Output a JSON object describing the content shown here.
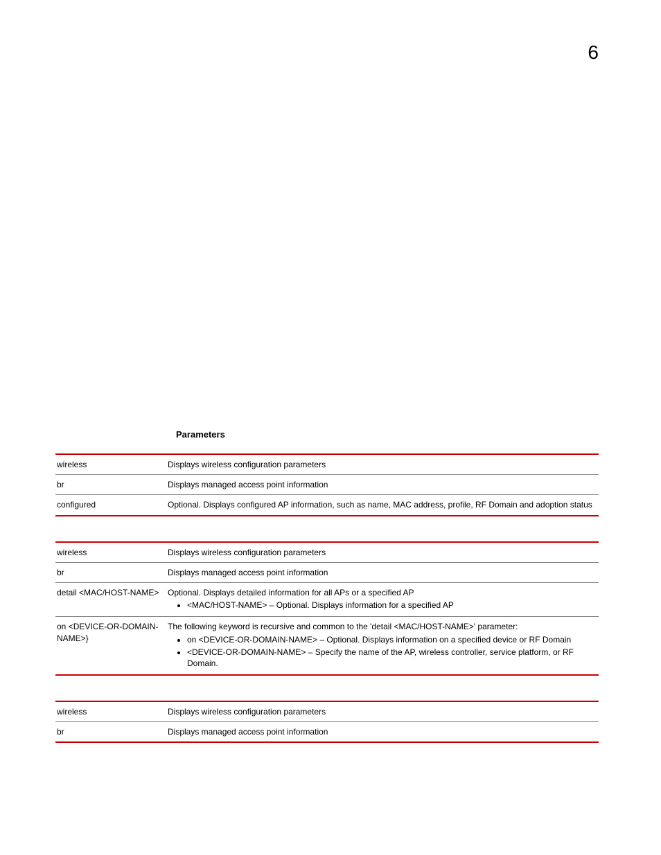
{
  "page": {
    "number": "6"
  },
  "section": {
    "heading": "Parameters"
  },
  "colors": {
    "rule": "#cc0000",
    "text": "#000000",
    "row_border": "#888888"
  },
  "tables": [
    {
      "rows": [
        {
          "param": "wireless",
          "desc": "Displays wireless configuration parameters"
        },
        {
          "param": "br",
          "desc": "Displays managed access point information"
        },
        {
          "param": "configured",
          "desc": "Optional. Displays configured AP information, such as name, MAC address, profile, RF Domain and adoption status"
        }
      ]
    },
    {
      "rows": [
        {
          "param": "wireless",
          "desc": "Displays wireless configuration parameters"
        },
        {
          "param": "br",
          "desc": "Displays managed access point information"
        },
        {
          "param": "detail <MAC/HOST-NAME>",
          "desc": "Optional. Displays detailed information for all APs or a specified AP",
          "bullets": [
            "<MAC/HOST-NAME> – Optional. Displays information for a specified AP"
          ]
        },
        {
          "param": "on <DEVICE-OR-DOMAIN-NAME>}",
          "desc": "The following keyword is recursive and common to the 'detail <MAC/HOST-NAME>' parameter:",
          "bullets": [
            "on <DEVICE-OR-DOMAIN-NAME> – Optional. Displays information on a specified device or RF Domain",
            "<DEVICE-OR-DOMAIN-NAME> – Specify the name of the AP, wireless controller, service platform, or RF Domain."
          ]
        }
      ]
    },
    {
      "rows": [
        {
          "param": "wireless",
          "desc": "Displays wireless configuration parameters"
        },
        {
          "param": "br",
          "desc": "Displays managed access point information"
        }
      ]
    }
  ]
}
